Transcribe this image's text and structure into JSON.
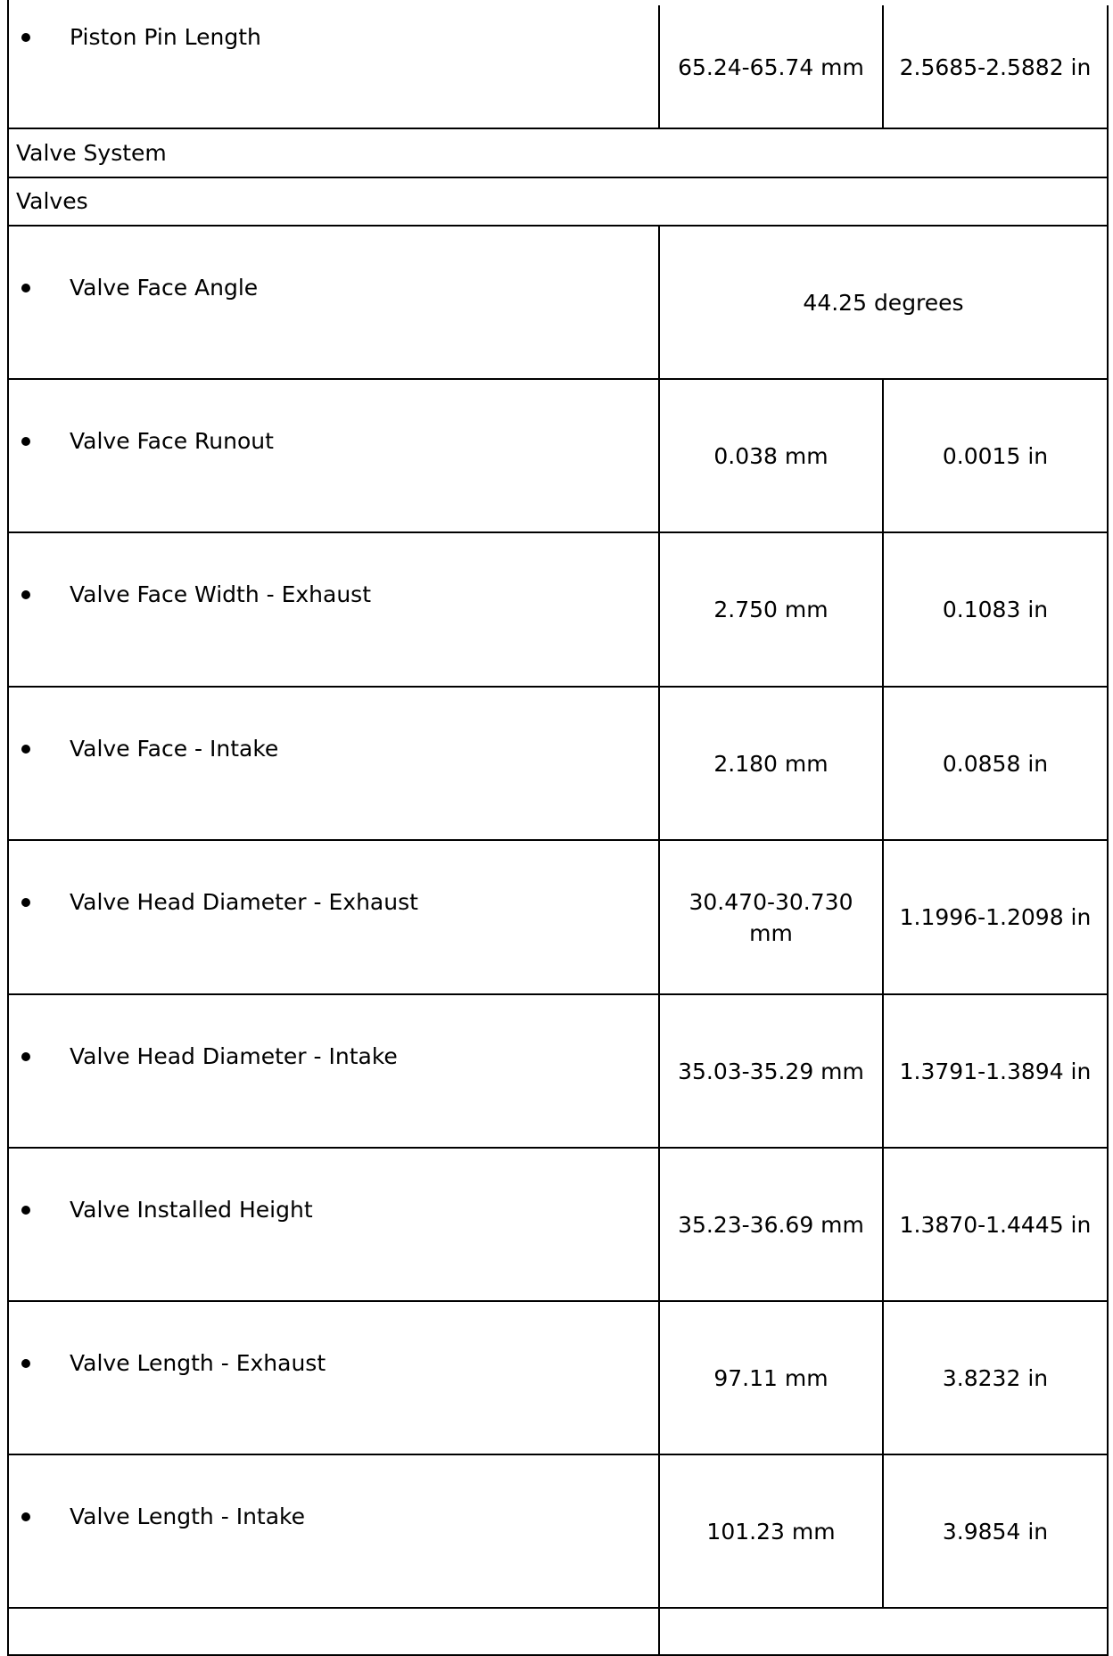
{
  "rows": [
    {
      "type": "item",
      "label": "Piston Pin Length",
      "metric": "65.24-65.74 mm",
      "imperial": "2.5685-2.5882 in"
    },
    {
      "type": "section",
      "label": "Valve System"
    },
    {
      "type": "section",
      "label": "Valves"
    },
    {
      "type": "item",
      "label": "Valve Face Angle",
      "combined": "44.25 degrees"
    },
    {
      "type": "item",
      "label": "Valve Face Runout",
      "metric": "0.038 mm",
      "imperial": "0.0015 in"
    },
    {
      "type": "item",
      "label": "Valve Face Width - Exhaust",
      "metric": "2.750 mm",
      "imperial": "0.1083 in"
    },
    {
      "type": "item",
      "label": "Valve Face - Intake",
      "metric": "2.180 mm",
      "imperial": "0.0858 in"
    },
    {
      "type": "item",
      "label": "Valve Head Diameter - Exhaust",
      "metric": "30.470-30.730 mm",
      "imperial": "1.1996-1.2098 in"
    },
    {
      "type": "item",
      "label": "Valve Head Diameter - Intake",
      "metric": "35.03-35.29 mm",
      "imperial": "1.3791-1.3894 in"
    },
    {
      "type": "item",
      "label": "Valve Installed Height",
      "metric": "35.23-36.69 mm",
      "imperial": "1.3870-1.4445 in"
    },
    {
      "type": "item",
      "label": "Valve Length - Exhaust",
      "metric": "97.11 mm",
      "imperial": "3.8232 in"
    },
    {
      "type": "item",
      "label": "Valve Length - Intake",
      "metric": "101.23 mm",
      "imperial": "3.9854 in"
    },
    {
      "type": "empty"
    }
  ]
}
